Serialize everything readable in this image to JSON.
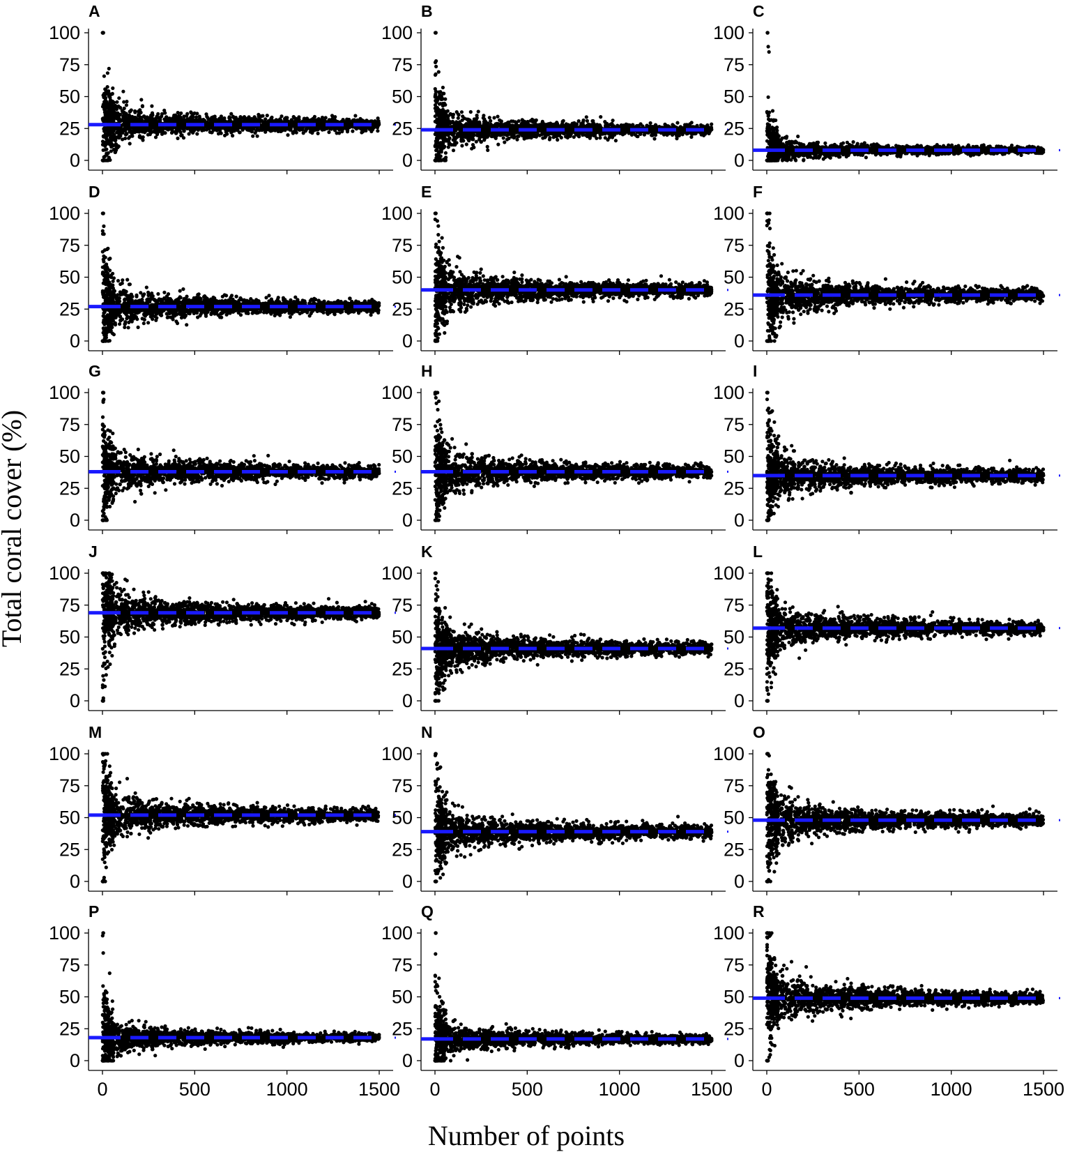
{
  "chart_data": {
    "type": "scatter",
    "ylabel": "Total coral cover (%)",
    "xlabel": "Number of points",
    "xlim": [
      0,
      1500
    ],
    "ylim": [
      0,
      100
    ],
    "x_ticks": [
      0,
      500,
      1000,
      1500
    ],
    "y_ticks": [
      0,
      25,
      50,
      75,
      100
    ],
    "grid": false,
    "point_color": "#000000",
    "mean_line_color": "#1a1aff",
    "mean_line_style": "dashed",
    "panels": [
      {
        "letter": "A",
        "mean": 28,
        "max_outlier": 100,
        "min_outlier": 0,
        "band_at_100": 9,
        "band_at_1500": 1.2
      },
      {
        "letter": "B",
        "mean": 24,
        "max_outlier": 100,
        "min_outlier": 0,
        "band_at_100": 8,
        "band_at_1500": 1.1
      },
      {
        "letter": "C",
        "mean": 8,
        "max_outlier": 100,
        "min_outlier": 0,
        "band_at_100": 5,
        "band_at_1500": 0.8
      },
      {
        "letter": "D",
        "mean": 27,
        "max_outlier": 100,
        "min_outlier": 0,
        "band_at_100": 9,
        "band_at_1500": 1.2
      },
      {
        "letter": "E",
        "mean": 40,
        "max_outlier": 100,
        "min_outlier": 0,
        "band_at_100": 10,
        "band_at_1500": 1.3
      },
      {
        "letter": "F",
        "mean": 36,
        "max_outlier": 100,
        "min_outlier": 0,
        "band_at_100": 10,
        "band_at_1500": 1.3
      },
      {
        "letter": "G",
        "mean": 38,
        "max_outlier": 100,
        "min_outlier": 0,
        "band_at_100": 10,
        "band_at_1500": 1.3
      },
      {
        "letter": "H",
        "mean": 38,
        "max_outlier": 100,
        "min_outlier": 0,
        "band_at_100": 10,
        "band_at_1500": 1.3
      },
      {
        "letter": "I",
        "mean": 35,
        "max_outlier": 100,
        "min_outlier": 0,
        "band_at_100": 10,
        "band_at_1500": 1.3
      },
      {
        "letter": "J",
        "mean": 69,
        "max_outlier": 100,
        "min_outlier": 0,
        "band_at_100": 10,
        "band_at_1500": 1.3
      },
      {
        "letter": "K",
        "mean": 41,
        "max_outlier": 100,
        "min_outlier": 0,
        "band_at_100": 10,
        "band_at_1500": 1.3
      },
      {
        "letter": "L",
        "mean": 57,
        "max_outlier": 100,
        "min_outlier": 0,
        "band_at_100": 10,
        "band_at_1500": 1.3
      },
      {
        "letter": "M",
        "mean": 52,
        "max_outlier": 100,
        "min_outlier": 0,
        "band_at_100": 10,
        "band_at_1500": 1.3
      },
      {
        "letter": "N",
        "mean": 39,
        "max_outlier": 100,
        "min_outlier": 0,
        "band_at_100": 10,
        "band_at_1500": 1.3
      },
      {
        "letter": "O",
        "mean": 48,
        "max_outlier": 100,
        "min_outlier": 0,
        "band_at_100": 10,
        "band_at_1500": 1.3
      },
      {
        "letter": "P",
        "mean": 18,
        "max_outlier": 100,
        "min_outlier": 0,
        "band_at_100": 7,
        "band_at_1500": 1.0
      },
      {
        "letter": "Q",
        "mean": 17,
        "max_outlier": 100,
        "min_outlier": 0,
        "band_at_100": 7,
        "band_at_1500": 1.0
      },
      {
        "letter": "R",
        "mean": 49,
        "max_outlier": 100,
        "min_outlier": 0,
        "band_at_100": 10,
        "band_at_1500": 1.3
      }
    ]
  }
}
